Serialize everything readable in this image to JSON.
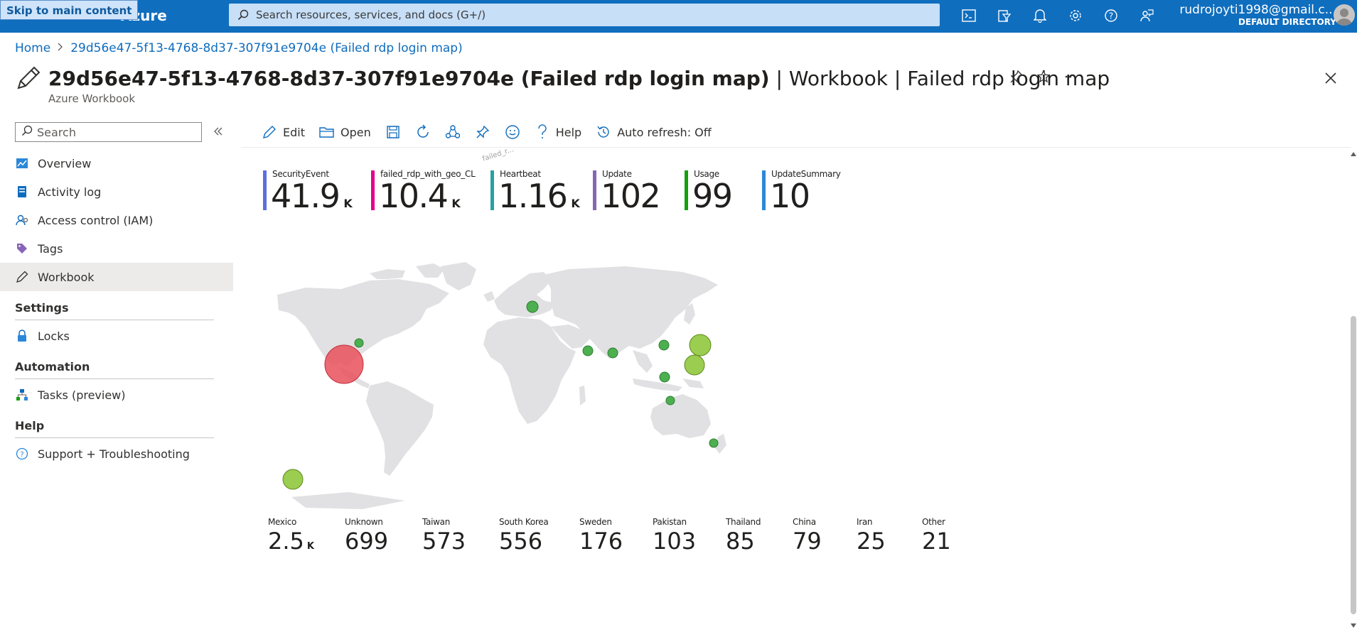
{
  "skip_link": "Skip to main content",
  "brand": "Azure",
  "search": {
    "placeholder": "Search resources, services, and docs (G+/)"
  },
  "user": {
    "email": "rudrojoyti1998@gmail.c...",
    "directory": "DEFAULT DIRECTORY"
  },
  "breadcrumb": {
    "home": "Home",
    "current": "29d56e47-5f13-4768-8d37-307f91e9704e (Failed rdp login map)"
  },
  "page": {
    "title_bold": "29d56e47-5f13-4768-8d37-307f91e9704e (Failed rdp login map)",
    "title_rest": " | Workbook | Failed rdp login map",
    "subtitle": "Azure Workbook"
  },
  "sidebar": {
    "search_placeholder": "Search",
    "items": [
      {
        "label": "Overview",
        "icon": "overview-icon"
      },
      {
        "label": "Activity log",
        "icon": "activity-log-icon"
      },
      {
        "label": "Access control (IAM)",
        "icon": "iam-icon"
      },
      {
        "label": "Tags",
        "icon": "tag-icon"
      },
      {
        "label": "Workbook",
        "icon": "pencil-icon"
      }
    ],
    "sections": [
      {
        "title": "Settings",
        "items": [
          {
            "label": "Locks",
            "icon": "lock-icon"
          }
        ]
      },
      {
        "title": "Automation",
        "items": [
          {
            "label": "Tasks (preview)",
            "icon": "tasks-icon"
          }
        ]
      },
      {
        "title": "Help",
        "items": [
          {
            "label": "Support + Troubleshooting",
            "icon": "support-icon"
          }
        ]
      }
    ]
  },
  "toolbar": {
    "edit": "Edit",
    "open": "Open",
    "help": "Help",
    "auto_refresh": "Auto refresh: Off"
  },
  "tiles": [
    {
      "label": "SecurityEvent",
      "value": "41.9",
      "unit": "K",
      "color": "#5b6fe0"
    },
    {
      "label": "failed_rdp_with_geo_CL",
      "value": "10.4",
      "unit": "K",
      "color": "#e3008c"
    },
    {
      "label": "Heartbeat",
      "value": "1.16",
      "unit": "K",
      "color": "#2aa0a4"
    },
    {
      "label": "Update",
      "value": "102",
      "unit": "",
      "color": "#8764b8"
    },
    {
      "label": "Usage",
      "value": "99",
      "unit": "",
      "color": "#13a10e"
    },
    {
      "label": "UpdateSummary",
      "value": "10",
      "unit": "",
      "color": "#2b88d8"
    }
  ],
  "map_labels": {
    "faint_left": "failed_r..."
  },
  "countries": [
    {
      "label": "Mexico",
      "value": "2.5",
      "unit": "K"
    },
    {
      "label": "Unknown",
      "value": "699",
      "unit": ""
    },
    {
      "label": "Taiwan",
      "value": "573",
      "unit": ""
    },
    {
      "label": "South Korea",
      "value": "556",
      "unit": ""
    },
    {
      "label": "Sweden",
      "value": "176",
      "unit": ""
    },
    {
      "label": "Pakistan",
      "value": "103",
      "unit": ""
    },
    {
      "label": "Thailand",
      "value": "85",
      "unit": ""
    },
    {
      "label": "China",
      "value": "79",
      "unit": ""
    },
    {
      "label": "Iran",
      "value": "25",
      "unit": ""
    },
    {
      "label": "Other",
      "value": "21",
      "unit": ""
    }
  ],
  "colors": {
    "topbar": "#106ebe",
    "link": "#0f6cbd",
    "bubble_red": "#e8505b",
    "bubble_green": "#4caf50",
    "bubble_lime": "#9acd50",
    "land": "#e1e1e3"
  }
}
